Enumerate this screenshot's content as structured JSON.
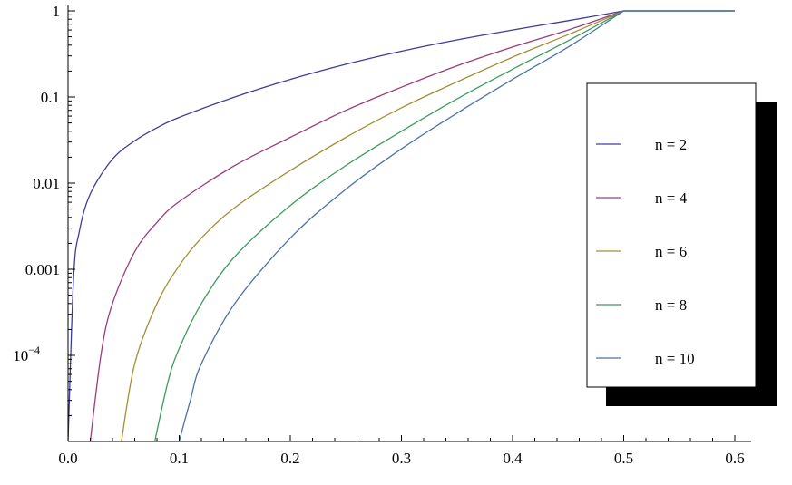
{
  "chart_data": {
    "type": "line",
    "title": "",
    "xlabel": "",
    "ylabel": "",
    "x_scale": "linear",
    "y_scale": "log",
    "xlim": [
      0,
      0.6
    ],
    "ylim": [
      1e-05,
      1
    ],
    "x_ticks": [
      {
        "value": 0.0,
        "label": "0.0"
      },
      {
        "value": 0.1,
        "label": "0.1"
      },
      {
        "value": 0.2,
        "label": "0.2"
      },
      {
        "value": 0.3,
        "label": "0.3"
      },
      {
        "value": 0.4,
        "label": "0.4"
      },
      {
        "value": 0.5,
        "label": "0.5"
      },
      {
        "value": 0.6,
        "label": "0.6"
      }
    ],
    "y_ticks": [
      {
        "value": 1,
        "label": "1"
      },
      {
        "value": 0.1,
        "label": "0.1"
      },
      {
        "value": 0.01,
        "label": "0.01"
      },
      {
        "value": 0.001,
        "label": "0.001"
      },
      {
        "value": 0.0001,
        "label": "10",
        "exponent": "−4"
      }
    ],
    "grid": false,
    "legend_position": "right",
    "series": [
      {
        "name": "n = 2",
        "color": "#3d3d9b",
        "x": [
          0,
          0.005,
          0.01,
          0.02,
          0.04,
          0.06,
          0.08,
          0.1,
          0.15,
          0.2,
          0.25,
          0.3,
          0.35,
          0.4,
          0.45,
          0.5,
          0.6
        ],
        "y": [
          1e-05,
          0.0008,
          0.0027,
          0.0075,
          0.019,
          0.031,
          0.044,
          0.058,
          0.1,
          0.16,
          0.24,
          0.34,
          0.46,
          0.6,
          0.77,
          1,
          1
        ]
      },
      {
        "name": "n = 4",
        "color": "#9b3d79",
        "x": [
          0.02,
          0.03,
          0.04,
          0.06,
          0.08,
          0.1,
          0.15,
          0.2,
          0.25,
          0.3,
          0.35,
          0.4,
          0.45,
          0.5,
          0.6
        ],
        "y": [
          1e-05,
          0.00011,
          0.0004,
          0.0016,
          0.0035,
          0.0061,
          0.016,
          0.034,
          0.07,
          0.13,
          0.23,
          0.38,
          0.6,
          1,
          1
        ]
      },
      {
        "name": "n = 6",
        "color": "#a58f37",
        "x": [
          0.048,
          0.06,
          0.08,
          0.1,
          0.12,
          0.15,
          0.2,
          0.25,
          0.3,
          0.35,
          0.4,
          0.45,
          0.5,
          0.6
        ],
        "y": [
          1e-05,
          8e-05,
          0.0004,
          0.0011,
          0.0023,
          0.0052,
          0.014,
          0.034,
          0.075,
          0.15,
          0.29,
          0.53,
          1,
          1
        ]
      },
      {
        "name": "n = 8",
        "color": "#3d9b5d",
        "x": [
          0.078,
          0.09,
          0.1,
          0.12,
          0.15,
          0.2,
          0.25,
          0.3,
          0.35,
          0.4,
          0.45,
          0.5,
          0.6
        ],
        "y": [
          1e-05,
          5e-05,
          0.00012,
          0.0004,
          0.0014,
          0.0055,
          0.016,
          0.04,
          0.095,
          0.21,
          0.45,
          1,
          1
        ]
      },
      {
        "name": "n = 10",
        "color": "#4d72a8",
        "x": [
          0.1,
          0.11,
          0.12,
          0.15,
          0.2,
          0.25,
          0.3,
          0.35,
          0.4,
          0.45,
          0.5,
          0.6
        ],
        "y": [
          1e-05,
          3e-05,
          8e-05,
          0.0004,
          0.0023,
          0.0085,
          0.025,
          0.065,
          0.16,
          0.38,
          1,
          1
        ]
      }
    ]
  }
}
